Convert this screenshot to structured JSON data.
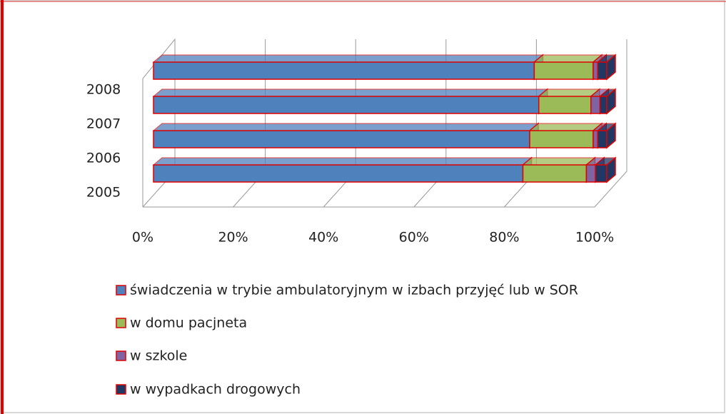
{
  "chart_data": {
    "type": "stacked_bar_3d",
    "orientation": "horizontal",
    "categories": [
      "2005",
      "2006",
      "2007",
      "2008"
    ],
    "series": [
      {
        "name": "świadczenia w trybie ambulatoryjnym w izbach przyjęć lub w SOR",
        "color": "#4f81bd",
        "values": [
          81.5,
          83,
          85,
          84
        ]
      },
      {
        "name": "w domu pacjneta",
        "color": "#9bbb59",
        "values": [
          14,
          14,
          11.5,
          13
        ]
      },
      {
        "name": "w szkole",
        "color": "#8064a2",
        "values": [
          2,
          1,
          2,
          1
        ]
      },
      {
        "name": "w wypadkach drogowych",
        "color": "#1f3864",
        "values": [
          2.5,
          2,
          1.5,
          2
        ]
      }
    ],
    "xlim": [
      0,
      100
    ],
    "xticks": [
      {
        "value": 0,
        "label": "0%"
      },
      {
        "value": 20,
        "label": "20%"
      },
      {
        "value": 40,
        "label": "40%"
      },
      {
        "value": 60,
        "label": "60%"
      },
      {
        "value": 80,
        "label": "80%"
      },
      {
        "value": 100,
        "label": "100%"
      }
    ],
    "grid": true,
    "legend": "bottom"
  }
}
